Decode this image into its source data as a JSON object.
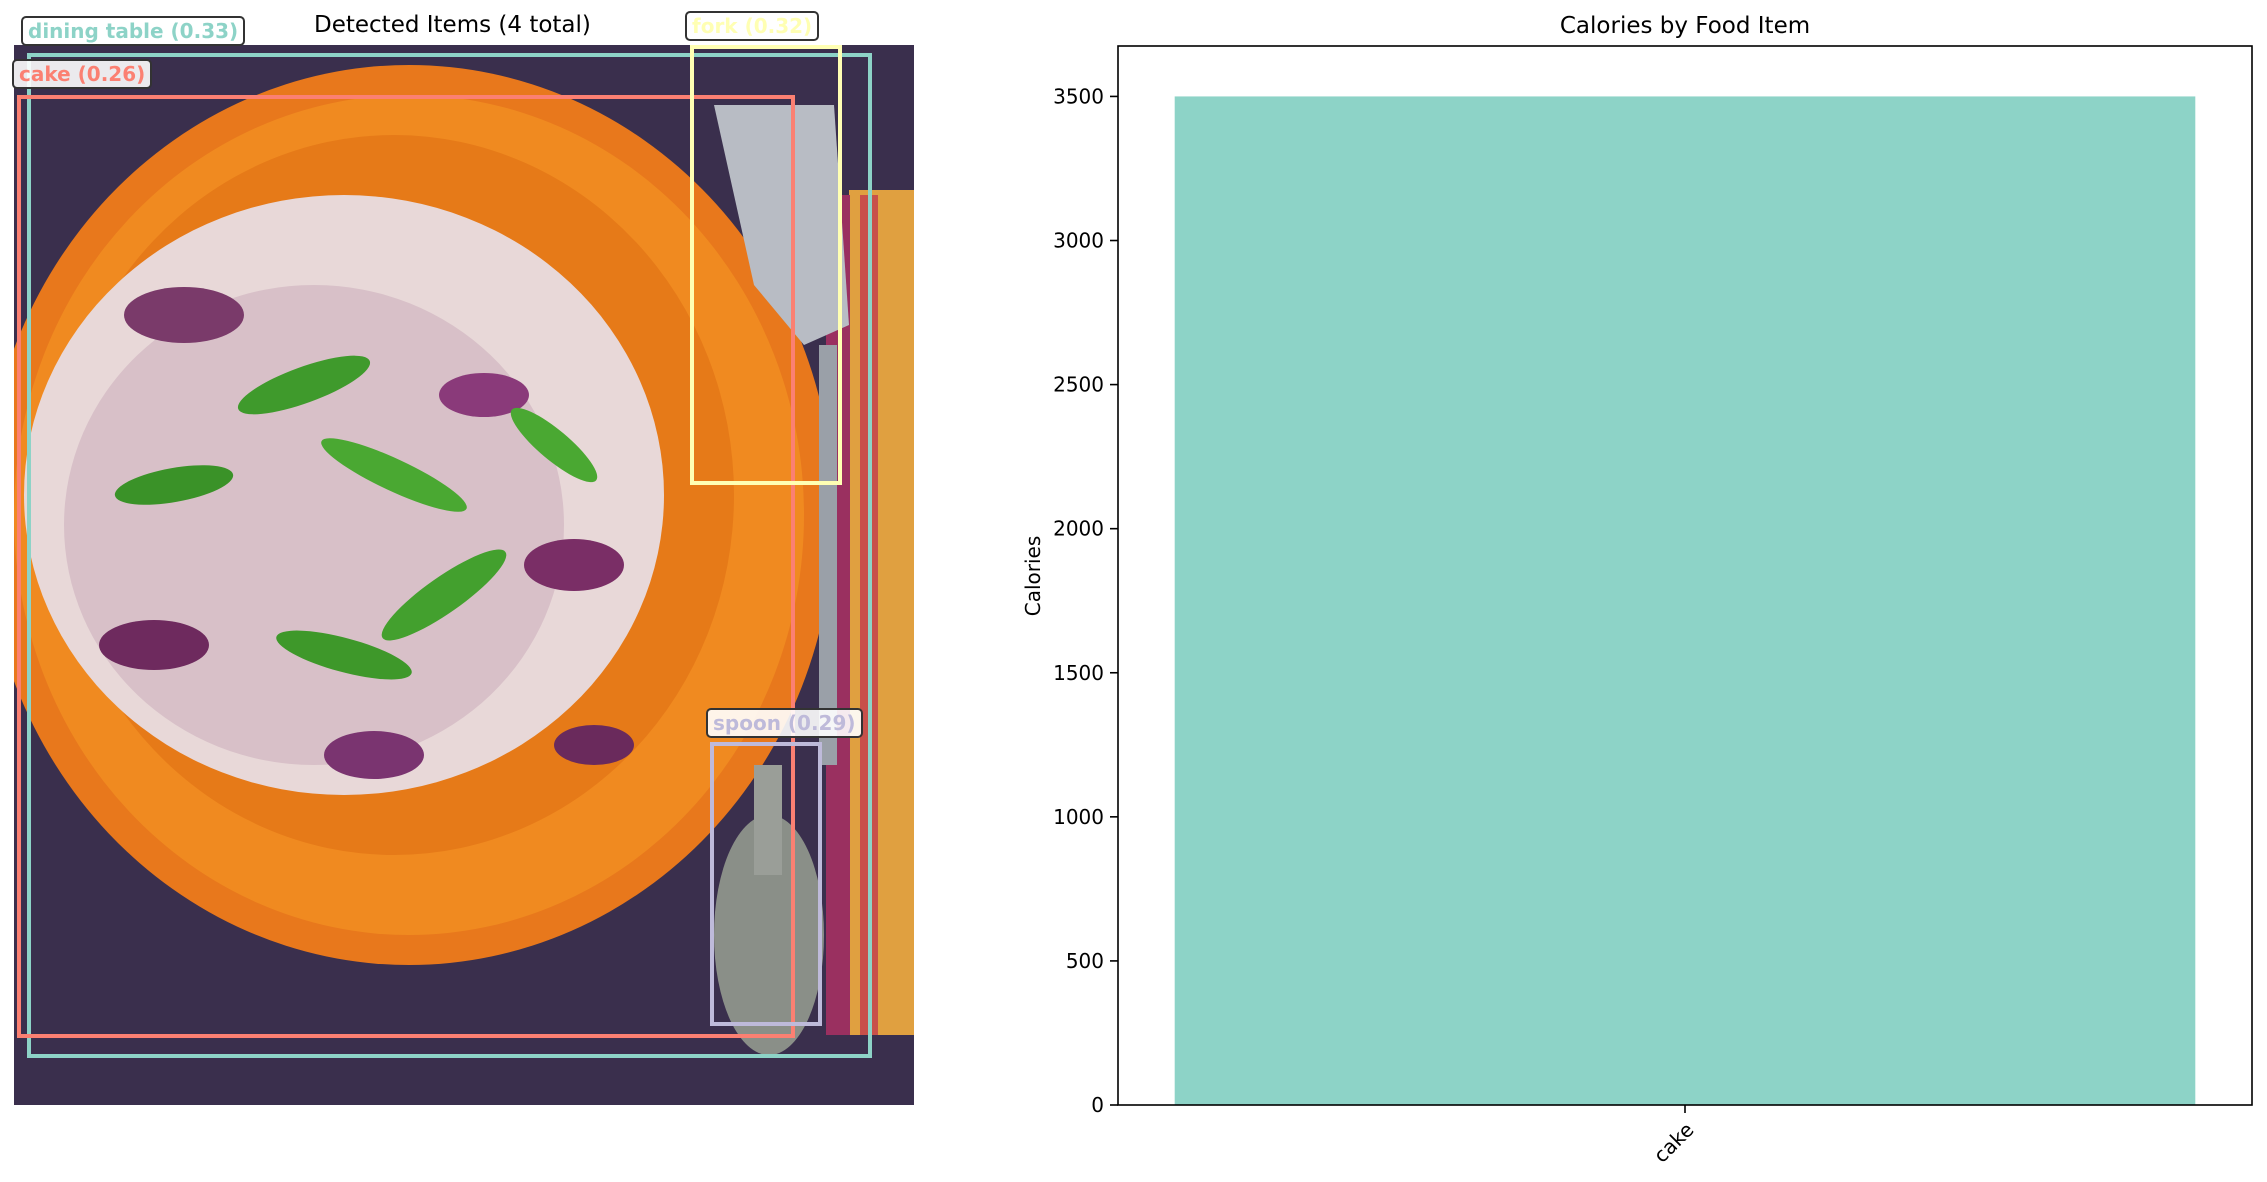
{
  "left_panel": {
    "title": "Detected Items (4 total)",
    "detections": [
      {
        "label": "dining table (0.33)",
        "color": "#8dd3c7"
      },
      {
        "label": "cake (0.26)",
        "color": "#fb8072"
      },
      {
        "label": "fork (0.32)",
        "color": "#ffffb3"
      },
      {
        "label": "spoon (0.29)",
        "color": "#bebada"
      }
    ]
  },
  "chart_data": {
    "type": "bar",
    "title": "Calories by Food Item",
    "xlabel": "",
    "ylabel": "Calories",
    "categories": [
      "cake"
    ],
    "values": [
      3500
    ],
    "ylim": [
      0,
      3675
    ],
    "yticks": [
      0,
      500,
      1000,
      1500,
      2000,
      2500,
      3000,
      3500
    ],
    "bar_color": "#8dd3c7",
    "grid": false
  }
}
